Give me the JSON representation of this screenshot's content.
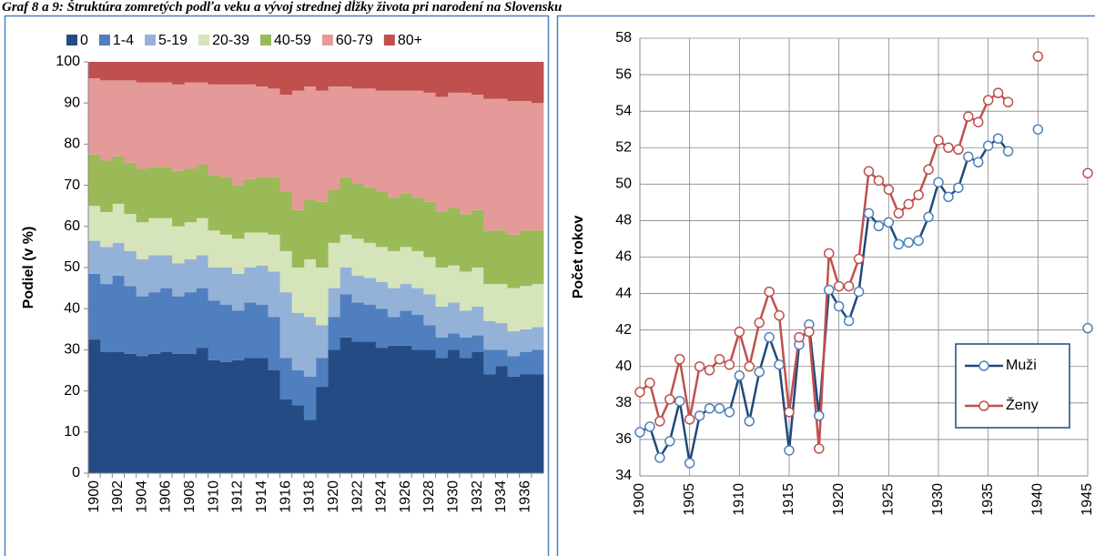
{
  "title": "Graf 8 a 9: Štruktúra zomretých podľa veku a vývoj strednej dĺžky života pri narodení na Slovensku",
  "chart_data": [
    {
      "type": "stacked_bar",
      "ylabel": "Podiel (v %)",
      "categories": [
        "1900",
        null,
        "1902",
        null,
        "1904",
        null,
        "1906",
        null,
        "1908",
        null,
        "1910",
        null,
        "1912",
        null,
        "1914",
        null,
        "1916",
        null,
        "1918",
        null,
        "1920",
        null,
        "1922",
        null,
        "1924",
        null,
        "1926",
        null,
        "1928",
        null,
        "1930",
        null,
        "1932",
        null,
        "1934",
        null,
        "1936",
        null
      ],
      "ylim": [
        0,
        100
      ],
      "yticks": [
        0,
        10,
        20,
        30,
        40,
        50,
        60,
        70,
        80,
        90,
        100
      ],
      "grid": false,
      "legend": "top",
      "series": [
        {
          "name": "0",
          "color": "#254b84",
          "values": [
            32.5,
            29.5,
            29.5,
            29,
            28.5,
            29,
            29.5,
            29,
            29,
            30.5,
            27.5,
            27,
            27.5,
            28,
            28,
            25,
            18,
            16.5,
            13,
            21,
            30,
            33,
            32,
            32,
            30.5,
            31,
            31,
            30,
            30,
            28,
            30,
            28,
            29.5,
            24,
            26,
            23.5,
            24,
            24
          ]
        },
        {
          "name": "1-4",
          "color": "#4f7fbf",
          "values": [
            16,
            16.5,
            18.5,
            16.5,
            14.5,
            15,
            15.5,
            14,
            15,
            14.5,
            14.5,
            14,
            12,
            13.5,
            13,
            13,
            10,
            8.5,
            10.5,
            7,
            8,
            10.5,
            9.5,
            9,
            9.5,
            7,
            8.5,
            8.5,
            6,
            5,
            4,
            5,
            4,
            6,
            4,
            5,
            5.5,
            6
          ]
        },
        {
          "name": "5-19",
          "color": "#94b2d8",
          "values": [
            8,
            9,
            8,
            8.5,
            9,
            9,
            8,
            8,
            8,
            8,
            8,
            9,
            9,
            8.5,
            9.5,
            11,
            16,
            14,
            14.5,
            8,
            7,
            6.5,
            6.5,
            6.5,
            6.5,
            7,
            6.5,
            6.5,
            7.5,
            7.5,
            7.5,
            6.5,
            7,
            7,
            6.5,
            6,
            5.5,
            5.5
          ]
        },
        {
          "name": "20-39",
          "color": "#d6e4bb",
          "values": [
            8.5,
            8.5,
            9.5,
            9,
            9,
            9,
            9,
            9,
            9,
            9,
            9,
            8,
            8.5,
            8.5,
            8,
            9,
            10,
            11,
            14,
            14,
            11,
            8,
            9,
            8.5,
            8.5,
            9,
            9,
            9,
            9,
            9.5,
            9,
            9.5,
            9.5,
            9,
            9.5,
            10.5,
            10.5,
            10.5
          ]
        },
        {
          "name": "40-59",
          "color": "#9aba58",
          "values": [
            12.5,
            12.5,
            11.5,
            12.5,
            13,
            12.5,
            12.5,
            13.5,
            13,
            13,
            13.5,
            14,
            13,
            13,
            13.5,
            14,
            14.5,
            14,
            14.5,
            16,
            13,
            14,
            13.5,
            13.5,
            13.5,
            13,
            13,
            13,
            13.5,
            13.5,
            14,
            14,
            14,
            13,
            13,
            13,
            13.5,
            13
          ]
        },
        {
          "name": "60-79",
          "color": "#e59a9a",
          "values": [
            18.5,
            19.5,
            18.5,
            20,
            21,
            20.5,
            20.5,
            21,
            21,
            20,
            22,
            22.5,
            24.5,
            23,
            22,
            21.5,
            23.5,
            29,
            27.5,
            27,
            25,
            22,
            23,
            24,
            24.5,
            26,
            25,
            26,
            26.5,
            28,
            28,
            29.5,
            28,
            32,
            32,
            32.5,
            31.5,
            31
          ]
        },
        {
          "name": "80+",
          "color": "#c0504d",
          "values": [
            4,
            4.5,
            4.5,
            4.5,
            5,
            5,
            5,
            5.5,
            5,
            5,
            5.5,
            5.5,
            5.5,
            5.5,
            6,
            6.5,
            8,
            7,
            6,
            7,
            6,
            6,
            6.5,
            6.5,
            7,
            7,
            7,
            7,
            7.5,
            8.5,
            7.5,
            7.5,
            8,
            9,
            9,
            9.5,
            9.5,
            10
          ]
        }
      ]
    },
    {
      "type": "line",
      "ylabel": "Počet rokov",
      "x": [
        1900,
        1901,
        1902,
        1903,
        1904,
        1905,
        1906,
        1907,
        1908,
        1909,
        1910,
        1911,
        1912,
        1913,
        1914,
        1915,
        1916,
        1917,
        1918,
        1919,
        1920,
        1921,
        1922,
        1923,
        1924,
        1925,
        1926,
        1927,
        1928,
        1929,
        1930,
        1931,
        1932,
        1933,
        1934,
        1935,
        1936,
        1937,
        1938,
        1939,
        1940,
        1941,
        1942,
        1943,
        1944,
        1945
      ],
      "xlim": [
        1900,
        1945
      ],
      "xticks": [
        1900,
        1905,
        1910,
        1915,
        1920,
        1925,
        1930,
        1935,
        1940,
        1945
      ],
      "ylim": [
        34,
        58
      ],
      "yticks": [
        34,
        36,
        38,
        40,
        42,
        44,
        46,
        48,
        50,
        52,
        54,
        56,
        58
      ],
      "grid": true,
      "legend": "lower right",
      "series": [
        {
          "name": "Muži",
          "color": "#1f497d",
          "values": [
            36.4,
            36.7,
            35.0,
            35.9,
            38.1,
            34.7,
            37.3,
            37.7,
            37.7,
            37.5,
            39.5,
            37.0,
            39.7,
            41.6,
            40.1,
            35.4,
            41.2,
            42.3,
            37.3,
            44.2,
            43.3,
            42.5,
            44.1,
            48.4,
            47.7,
            47.9,
            46.7,
            46.8,
            46.9,
            48.2,
            50.1,
            49.3,
            49.8,
            51.5,
            51.2,
            52.1,
            52.5,
            51.8,
            null,
            null,
            53.0,
            null,
            null,
            null,
            null,
            42.1
          ]
        },
        {
          "name": "Ženy",
          "color": "#c0504d",
          "values": [
            38.6,
            39.1,
            37.0,
            38.2,
            40.4,
            37.1,
            40.0,
            39.8,
            40.4,
            40.1,
            41.9,
            40.0,
            42.4,
            44.1,
            42.8,
            37.5,
            41.6,
            41.9,
            35.5,
            46.2,
            44.4,
            44.4,
            45.9,
            50.7,
            50.2,
            49.7,
            48.4,
            48.9,
            49.4,
            50.8,
            52.4,
            52.0,
            51.9,
            53.7,
            53.4,
            54.6,
            55.0,
            54.5,
            null,
            null,
            57.0,
            null,
            null,
            null,
            null,
            50.6
          ]
        }
      ]
    }
  ]
}
